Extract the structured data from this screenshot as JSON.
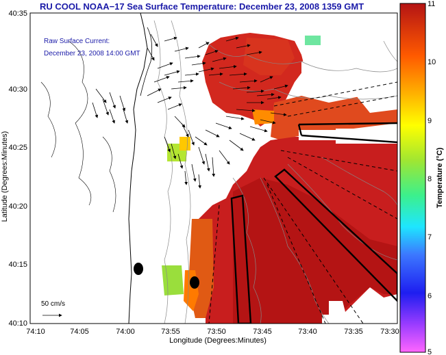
{
  "map": {
    "title": "RU COOL  NOAA−17  Sea Surface Temperature:  December 23, 2008 1359 GMT",
    "annotation_line1": "Raw Surface Current:",
    "annotation_line2": "December 23, 2008 14:00 GMT",
    "scale_label": "50 cm/s",
    "xlabel": "Longitude (Degrees:Minutes)",
    "ylabel": "Latitude (Degrees:Minutes)",
    "x_ticks": [
      "74:10",
      "74:05",
      "74:00",
      "73:55",
      "73:50",
      "73:45",
      "73:40",
      "73:35",
      "73:30"
    ],
    "y_ticks": [
      "40:35",
      "40:30",
      "40:25",
      "40:20",
      "40:15",
      "40:10"
    ]
  },
  "colorbar": {
    "label": "Temperature (°C)",
    "min": 5,
    "max": 11,
    "ticks": [
      "11",
      "10",
      "9",
      "8",
      "7",
      "6",
      "5"
    ]
  },
  "colors": {
    "title": "#1a1aa8",
    "land": "#ffffff",
    "sst_warm": "#cc1a1a",
    "sst_hot": "#b01010"
  }
}
